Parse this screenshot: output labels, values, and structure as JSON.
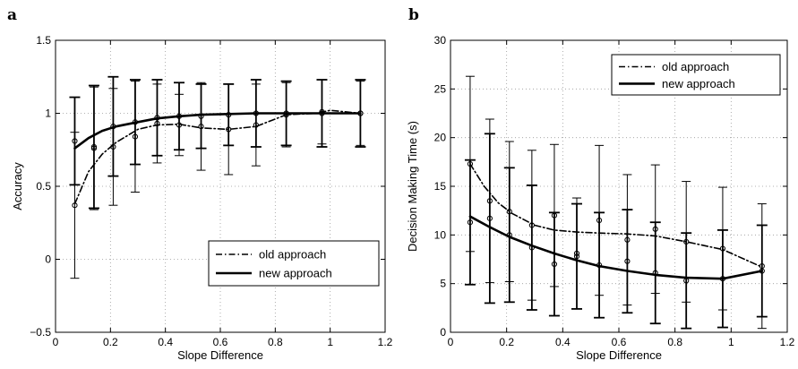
{
  "chart_data": [
    {
      "panel_label": "a",
      "type": "line",
      "xlabel": "Slope Difference",
      "ylabel": "Accuracy",
      "xlim": [
        0,
        1.2
      ],
      "ylim": [
        -0.5,
        1.5
      ],
      "xticks": [
        0,
        0.2,
        0.4,
        0.6,
        0.8,
        1,
        1.2
      ],
      "xtick_labels": [
        "0",
        "0.2",
        "0.4",
        "0.6",
        "0.8",
        "1",
        "1.2"
      ],
      "yticks": [
        -0.5,
        0,
        0.5,
        1,
        1.5
      ],
      "ytick_labels": [
        "−0.5",
        "0",
        "0.5",
        "1",
        "1.5"
      ],
      "grid": true,
      "legend_position": "bottom-right",
      "x": [
        0.07,
        0.14,
        0.21,
        0.29,
        0.37,
        0.45,
        0.53,
        0.63,
        0.73,
        0.84,
        0.97,
        1.11
      ],
      "series": [
        {
          "name": "old approach",
          "style": "dash-dot",
          "values": [
            0.37,
            0.76,
            0.77,
            0.84,
            0.93,
            0.92,
            0.91,
            0.89,
            0.92,
            0.99,
            1.01,
            1.0
          ],
          "err": [
            0.5,
            0.42,
            0.4,
            0.38,
            0.27,
            0.21,
            0.3,
            0.31,
            0.28,
            0.22,
            0.22,
            0.22
          ]
        },
        {
          "name": "new approach",
          "style": "solid",
          "values": [
            0.81,
            0.77,
            0.91,
            0.94,
            0.97,
            0.98,
            0.98,
            0.99,
            1.0,
            1.0,
            1.0,
            1.0
          ],
          "err": [
            0.3,
            0.42,
            0.34,
            0.29,
            0.26,
            0.23,
            0.22,
            0.21,
            0.23,
            0.22,
            0.23,
            0.23
          ]
        }
      ],
      "fit_curves": [
        {
          "series": "old approach",
          "x": [
            0.07,
            0.12,
            0.17,
            0.22,
            0.3,
            0.37,
            0.45,
            0.53,
            0.63,
            0.73,
            0.84,
            0.95,
            1.0,
            1.11
          ],
          "y": [
            0.38,
            0.6,
            0.72,
            0.8,
            0.89,
            0.92,
            0.925,
            0.9,
            0.89,
            0.91,
            0.99,
            1.0,
            1.02,
            1.0
          ]
        },
        {
          "series": "new approach",
          "x": [
            0.07,
            0.12,
            0.17,
            0.22,
            0.3,
            0.37,
            0.45,
            0.53,
            0.63,
            0.73,
            0.84,
            0.95,
            1.11
          ],
          "y": [
            0.76,
            0.83,
            0.88,
            0.91,
            0.94,
            0.965,
            0.98,
            0.99,
            0.995,
            1.0,
            1.0,
            1.0,
            1.0
          ]
        }
      ]
    },
    {
      "panel_label": "b",
      "type": "line",
      "xlabel": "Slope Difference",
      "ylabel": "Decision Making Time (s)",
      "xlim": [
        0,
        1.2
      ],
      "ylim": [
        0,
        30
      ],
      "xticks": [
        0,
        0.2,
        0.4,
        0.6,
        0.8,
        1,
        1.2
      ],
      "xtick_labels": [
        "0",
        "0.2",
        "0.4",
        "0.6",
        "0.8",
        "1",
        "1.2"
      ],
      "yticks": [
        0,
        5,
        10,
        15,
        20,
        25,
        30
      ],
      "ytick_labels": [
        "0",
        "5",
        "10",
        "15",
        "20",
        "25",
        "30"
      ],
      "grid": true,
      "legend_position": "top-right",
      "x": [
        0.07,
        0.14,
        0.21,
        0.29,
        0.37,
        0.45,
        0.53,
        0.63,
        0.73,
        0.84,
        0.97,
        1.11
      ],
      "series": [
        {
          "name": "old approach",
          "style": "dash-dot",
          "values": [
            17.3,
            13.5,
            12.4,
            11.0,
            12.0,
            8.1,
            11.5,
            9.5,
            10.6,
            9.3,
            8.6,
            6.8
          ],
          "err": [
            9.0,
            8.4,
            7.2,
            7.7,
            7.3,
            5.7,
            7.7,
            6.7,
            6.6,
            6.2,
            6.3,
            6.4
          ]
        },
        {
          "name": "new approach",
          "style": "solid",
          "values": [
            11.3,
            11.7,
            10.0,
            8.7,
            7.0,
            7.8,
            6.9,
            7.3,
            6.1,
            5.3,
            5.5,
            6.3
          ],
          "err": [
            6.4,
            8.7,
            6.9,
            6.4,
            5.3,
            5.4,
            5.4,
            5.3,
            5.2,
            4.9,
            5.0,
            4.7
          ]
        }
      ],
      "fit_curves": [
        {
          "series": "old approach",
          "x": [
            0.07,
            0.12,
            0.17,
            0.22,
            0.3,
            0.37,
            0.45,
            0.53,
            0.63,
            0.73,
            0.84,
            0.97,
            1.11
          ],
          "y": [
            17.3,
            15.0,
            13.3,
            12.2,
            11.0,
            10.5,
            10.3,
            10.2,
            10.1,
            9.9,
            9.3,
            8.5,
            6.7
          ]
        },
        {
          "series": "new approach",
          "x": [
            0.07,
            0.14,
            0.21,
            0.29,
            0.37,
            0.45,
            0.53,
            0.63,
            0.73,
            0.84,
            0.97,
            1.11
          ],
          "y": [
            11.9,
            10.8,
            9.8,
            8.9,
            8.1,
            7.4,
            6.8,
            6.3,
            5.9,
            5.6,
            5.5,
            6.3
          ]
        }
      ]
    }
  ]
}
